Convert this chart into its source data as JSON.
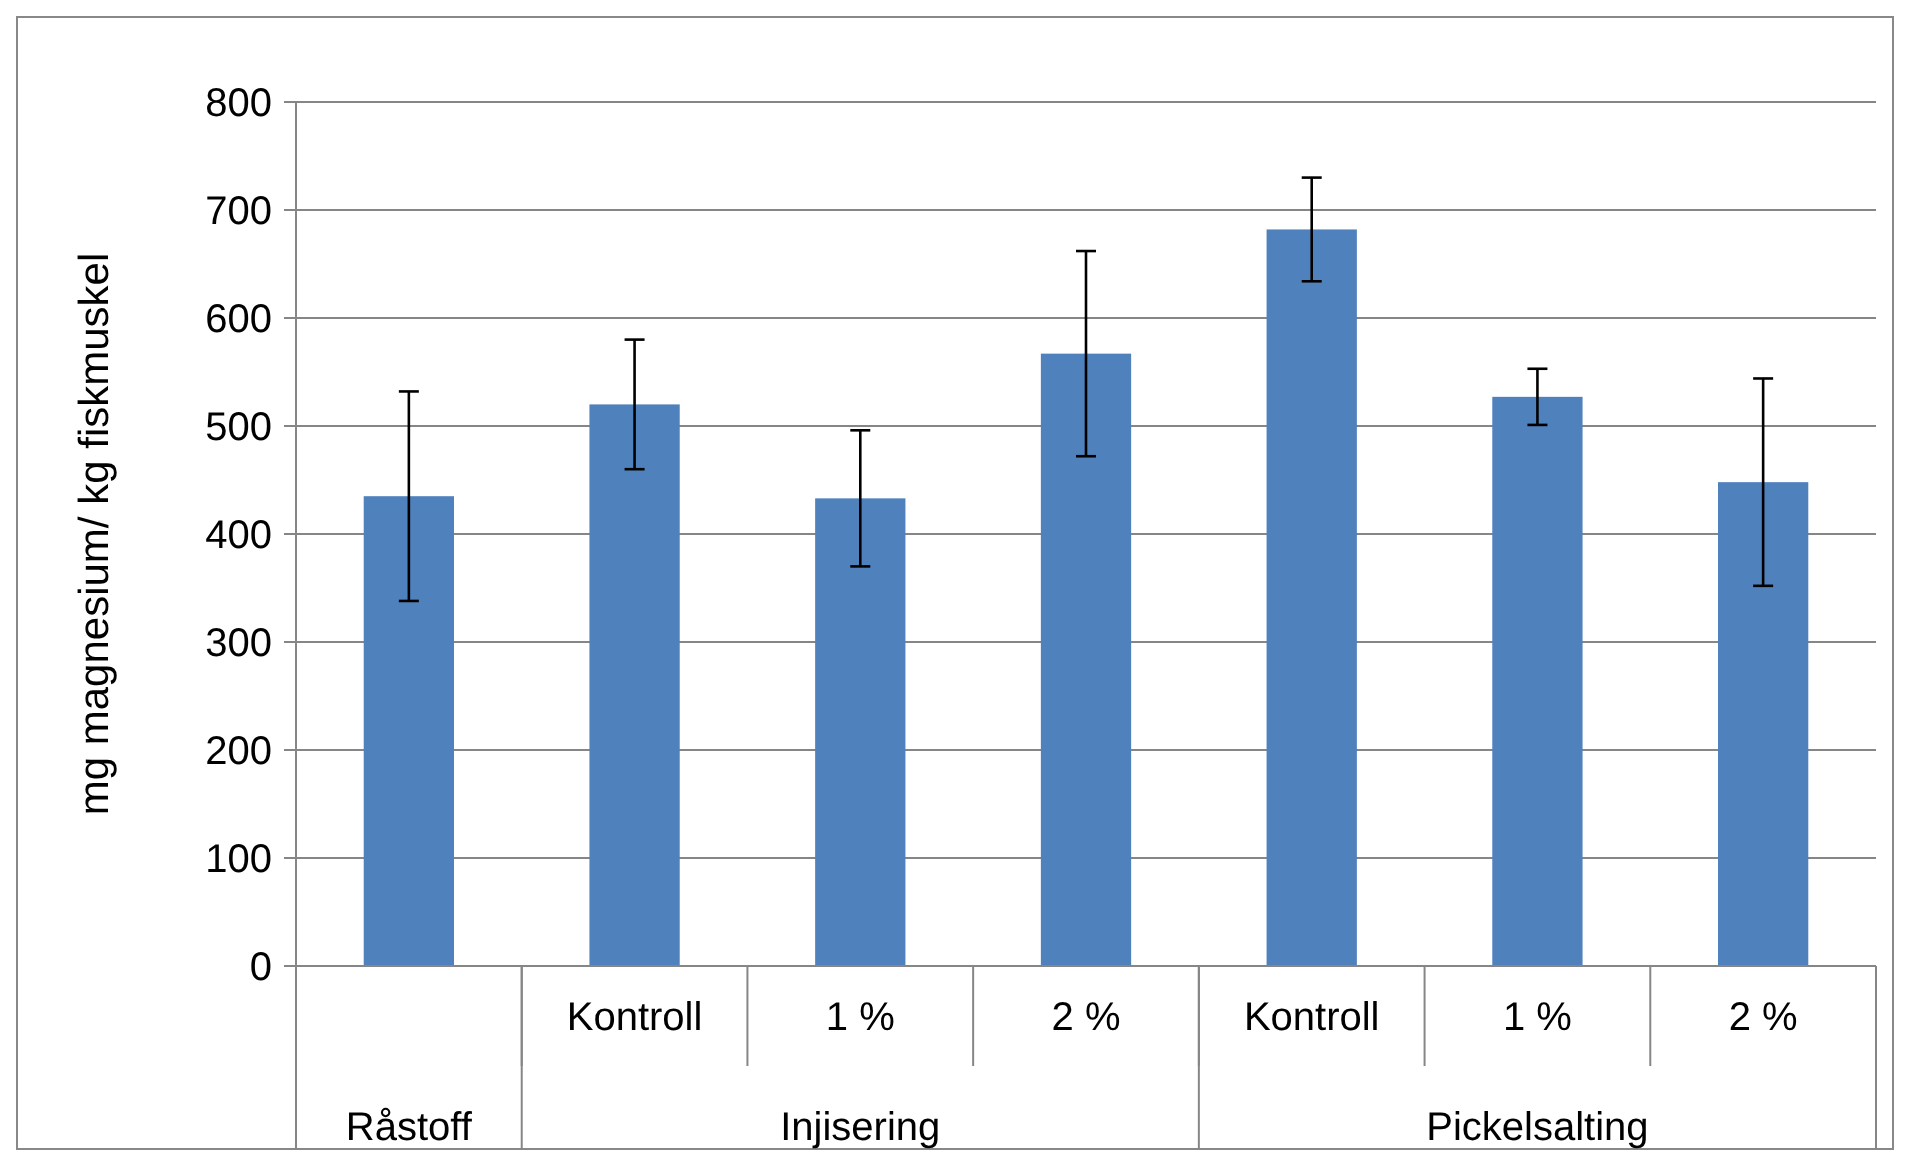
{
  "chart_data": {
    "type": "bar",
    "ylabel": "mg magnesium/ kg fiskmuskel",
    "categories": [
      null,
      "Kontroll",
      "1 %",
      "2 %",
      "Kontroll",
      "1 %",
      "2 %"
    ],
    "annotations": [
      "Råstoff",
      "Injisering",
      "Pickelsalting"
    ],
    "series": [
      {
        "color": "#4f81bd",
        "values": [
          435,
          520,
          433,
          567,
          682,
          527,
          448
        ],
        "errors": [
          97,
          60,
          63,
          95,
          48,
          26,
          96
        ]
      }
    ],
    "ylim": [
      0,
      800
    ],
    "yticks": [
      0,
      100,
      200,
      300,
      400,
      500,
      600,
      700,
      800
    ],
    "grid": "y"
  }
}
